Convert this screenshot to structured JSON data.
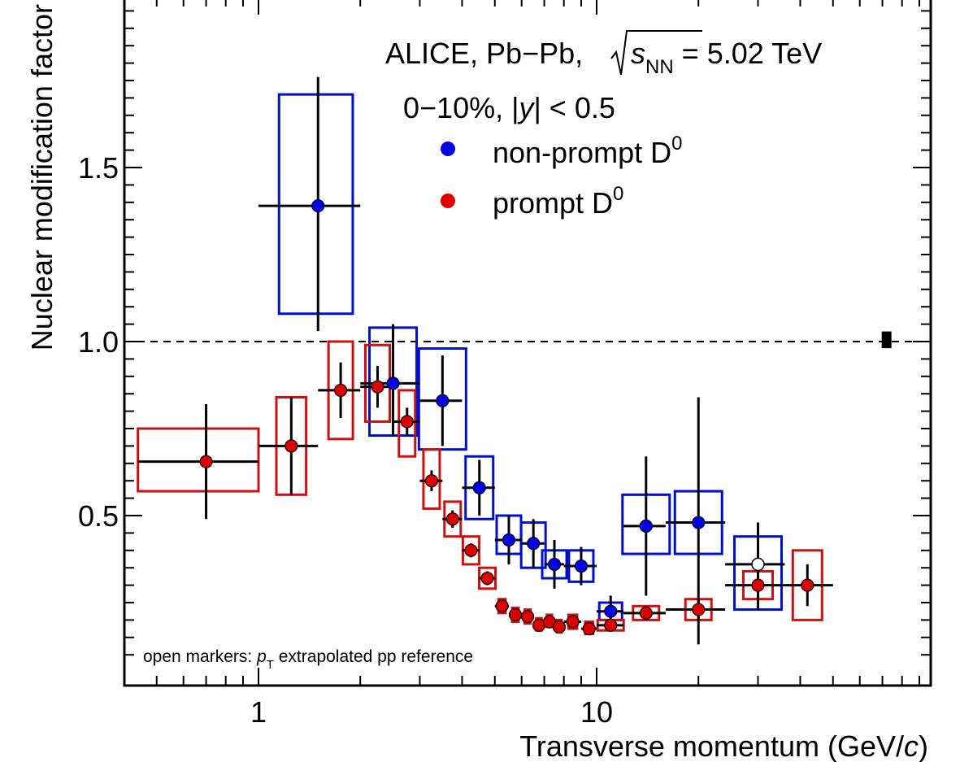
{
  "chart_data": {
    "type": "scatter",
    "title": "ALICE, Pb−Pb,",
    "energy_label": {
      "sqrt": "s",
      "sub": "NN",
      "rest": " = 5.02 TeV"
    },
    "subtitle": {
      "pre": "0−10%, |",
      "var": "y",
      "post": "| < 0.5"
    },
    "xlabel": "Transverse momentum (GeV/",
    "xlabel_var": "c",
    "xlabel_close": ")",
    "ylabel": "Nuclear modification factor",
    "xscale": "log",
    "xlim": [
      0.44,
      100
    ],
    "ylim": [
      0.085,
      2.0
    ],
    "x_ticklabels": [
      "1",
      "10"
    ],
    "y_ticklabels": [
      "0.5",
      "1.0",
      "1.5"
    ],
    "reference_line": 1.0,
    "normalization_box": {
      "x": 72,
      "ylow": 0.981,
      "yhigh": 1.029
    },
    "legend_position": "top-right",
    "note": {
      "pre": "open markers: ",
      "var": "p",
      "sub": "T",
      "post": " extrapolated pp reference"
    },
    "series": [
      {
        "name": "non-prompt D",
        "name_sup": "0",
        "color": "#0000e6",
        "box_color": "#0010c8",
        "points": [
          {
            "x": 1.5,
            "xlo": 1.0,
            "xhi": 2.0,
            "y": 1.39,
            "ylo": 1.03,
            "yhi": 1.76,
            "sys": [
              1.08,
              1.71
            ]
          },
          {
            "x": 2.5,
            "xlo": 2.0,
            "xhi": 3.0,
            "y": 0.88,
            "ylo": 0.73,
            "yhi": 1.05,
            "sys": [
              0.73,
              1.04
            ]
          },
          {
            "x": 3.5,
            "xlo": 3.0,
            "xhi": 4.0,
            "y": 0.83,
            "ylo": 0.7,
            "yhi": 0.96,
            "sys": [
              0.69,
              0.98
            ]
          },
          {
            "x": 4.5,
            "xlo": 4.0,
            "xhi": 5.0,
            "y": 0.58,
            "ylo": 0.5,
            "yhi": 0.66,
            "sys": [
              0.49,
              0.67
            ]
          },
          {
            "x": 5.5,
            "xlo": 5.0,
            "xhi": 6.0,
            "y": 0.43,
            "ylo": 0.36,
            "yhi": 0.5,
            "sys": [
              0.39,
              0.5
            ]
          },
          {
            "x": 6.5,
            "xlo": 6.0,
            "xhi": 7.0,
            "y": 0.42,
            "ylo": 0.35,
            "yhi": 0.49,
            "sys": [
              0.35,
              0.48
            ]
          },
          {
            "x": 7.5,
            "xlo": 7.0,
            "xhi": 8.0,
            "y": 0.36,
            "ylo": 0.29,
            "yhi": 0.43,
            "sys": [
              0.32,
              0.4
            ]
          },
          {
            "x": 9.0,
            "xlo": 8.0,
            "xhi": 10.0,
            "y": 0.355,
            "ylo": 0.3,
            "yhi": 0.41,
            "sys": [
              0.31,
              0.4
            ]
          },
          {
            "x": 11.0,
            "xlo": 10.0,
            "xhi": 12.0,
            "y": 0.225,
            "ylo": 0.19,
            "yhi": 0.27,
            "sys": [
              0.2,
              0.25
            ]
          },
          {
            "x": 14.0,
            "xlo": 12.0,
            "xhi": 16.0,
            "y": 0.47,
            "ylo": 0.27,
            "yhi": 0.67,
            "sys": [
              0.39,
              0.56
            ]
          },
          {
            "x": 20.0,
            "xlo": 16.0,
            "xhi": 24.0,
            "y": 0.48,
            "ylo": 0.13,
            "yhi": 0.84,
            "sys": [
              0.39,
              0.57
            ]
          },
          {
            "x": 30.0,
            "xlo": 24.0,
            "xhi": 36.0,
            "y": 0.36,
            "ylo": 0.23,
            "yhi": 0.48,
            "sys": [
              0.23,
              0.44
            ],
            "open": true
          }
        ]
      },
      {
        "name": "prompt D",
        "name_sup": "0",
        "color": "#dd0000",
        "box_color": "#cc1111",
        "points": [
          {
            "x": 0.7,
            "xlo": 0.44,
            "xhi": 1.0,
            "y": 0.655,
            "ylo": 0.49,
            "yhi": 0.82,
            "sys": [
              0.57,
              0.75
            ]
          },
          {
            "x": 1.25,
            "xlo": 1.0,
            "xhi": 1.5,
            "y": 0.7,
            "ylo": 0.56,
            "yhi": 0.84,
            "sys": [
              0.56,
              0.84
            ]
          },
          {
            "x": 1.75,
            "xlo": 1.5,
            "xhi": 2.0,
            "y": 0.86,
            "ylo": 0.78,
            "yhi": 0.94,
            "sys": [
              0.72,
              1.0
            ]
          },
          {
            "x": 2.25,
            "xlo": 2.0,
            "xhi": 2.5,
            "y": 0.87,
            "ylo": 0.81,
            "yhi": 0.93,
            "sys": [
              0.77,
              0.99
            ]
          },
          {
            "x": 2.75,
            "xlo": 2.5,
            "xhi": 3.0,
            "y": 0.77,
            "ylo": 0.73,
            "yhi": 0.81,
            "sys": [
              0.67,
              0.86
            ]
          },
          {
            "x": 3.25,
            "xlo": 3.0,
            "xhi": 3.5,
            "y": 0.6,
            "ylo": 0.57,
            "yhi": 0.63,
            "sys": [
              0.52,
              0.69
            ]
          },
          {
            "x": 3.75,
            "xlo": 3.5,
            "xhi": 4.0,
            "y": 0.49,
            "ylo": 0.465,
            "yhi": 0.515,
            "sys": [
              0.44,
              0.54
            ]
          },
          {
            "x": 4.25,
            "xlo": 4.0,
            "xhi": 4.5,
            "y": 0.4,
            "ylo": 0.38,
            "yhi": 0.42,
            "sys": [
              0.36,
              0.44
            ]
          },
          {
            "x": 4.75,
            "xlo": 4.5,
            "xhi": 5.0,
            "y": 0.32,
            "ylo": 0.3,
            "yhi": 0.34,
            "sys": [
              0.29,
              0.35
            ]
          },
          {
            "x": 5.25,
            "xlo": 5.0,
            "xhi": 5.5,
            "y": 0.24,
            "ylo": 0.225,
            "yhi": 0.255,
            "sys": [
              0.22,
              0.26
            ]
          },
          {
            "x": 5.75,
            "xlo": 5.5,
            "xhi": 6.0,
            "y": 0.215,
            "ylo": 0.2,
            "yhi": 0.23,
            "sys": [
              0.195,
              0.235
            ]
          },
          {
            "x": 6.25,
            "xlo": 6.0,
            "xhi": 6.5,
            "y": 0.21,
            "ylo": 0.195,
            "yhi": 0.225,
            "sys": [
              0.19,
              0.23
            ]
          },
          {
            "x": 6.75,
            "xlo": 6.5,
            "xhi": 7.0,
            "y": 0.185,
            "ylo": 0.17,
            "yhi": 0.2,
            "sys": [
              0.17,
              0.205
            ]
          },
          {
            "x": 7.25,
            "xlo": 7.0,
            "xhi": 7.5,
            "y": 0.195,
            "ylo": 0.18,
            "yhi": 0.21,
            "sys": [
              0.18,
              0.215
            ]
          },
          {
            "x": 7.75,
            "xlo": 7.5,
            "xhi": 8.0,
            "y": 0.18,
            "ylo": 0.165,
            "yhi": 0.195,
            "sys": [
              0.165,
              0.2
            ]
          },
          {
            "x": 8.5,
            "xlo": 8.0,
            "xhi": 9.0,
            "y": 0.195,
            "ylo": 0.18,
            "yhi": 0.21,
            "sys": [
              0.175,
              0.215
            ]
          },
          {
            "x": 9.5,
            "xlo": 9.0,
            "xhi": 10.0,
            "y": 0.175,
            "ylo": 0.16,
            "yhi": 0.19,
            "sys": [
              0.16,
              0.195
            ]
          },
          {
            "x": 11.0,
            "xlo": 10.0,
            "xhi": 12.0,
            "y": 0.185,
            "ylo": 0.17,
            "yhi": 0.2,
            "sys": [
              0.17,
              0.2
            ]
          },
          {
            "x": 14.0,
            "xlo": 12.0,
            "xhi": 16.0,
            "y": 0.22,
            "ylo": 0.2,
            "yhi": 0.24,
            "sys": [
              0.2,
              0.24
            ]
          },
          {
            "x": 20.0,
            "xlo": 16.0,
            "xhi": 24.0,
            "y": 0.23,
            "ylo": 0.2,
            "yhi": 0.26,
            "sys": [
              0.2,
              0.26
            ]
          },
          {
            "x": 30.0,
            "xlo": 24.0,
            "xhi": 36.0,
            "y": 0.3,
            "ylo": 0.25,
            "yhi": 0.35,
            "sys": [
              0.26,
              0.34
            ]
          },
          {
            "x": 42.0,
            "xlo": 36.0,
            "xhi": 50.0,
            "y": 0.3,
            "ylo": 0.24,
            "yhi": 0.36,
            "sys": [
              0.2,
              0.4
            ]
          }
        ]
      }
    ]
  }
}
